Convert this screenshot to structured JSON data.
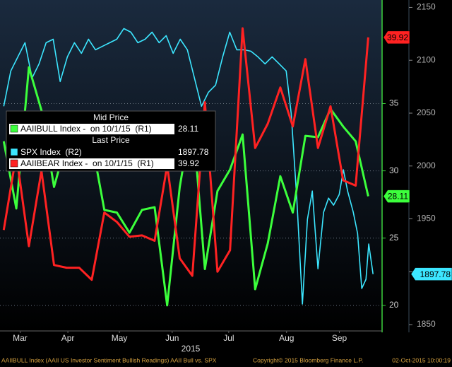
{
  "chart_data": {
    "type": "line",
    "x_label": "2015",
    "xlim": [
      -0.3,
      30.1
    ],
    "xticks": [
      {
        "value": 1.3,
        "label": "Mar"
      },
      {
        "value": 5.1,
        "label": "Apr"
      },
      {
        "value": 9.2,
        "label": "May"
      },
      {
        "value": 13.4,
        "label": "Jun"
      },
      {
        "value": 17.9,
        "label": "Jul"
      },
      {
        "value": 22.5,
        "label": "Aug"
      },
      {
        "value": 26.7,
        "label": "Sep"
      }
    ],
    "ylim": [
      18.1,
      42.7
    ],
    "yticks": [
      20,
      25,
      30,
      35
    ],
    "y2lim": [
      1844,
      2157
    ],
    "y2ticks": [
      1850,
      1900,
      1950,
      2000,
      2050,
      2100,
      2150
    ],
    "grid": true,
    "legend_groups": [
      "Mid Price",
      "Last Price"
    ],
    "series": [
      {
        "name": "AAIIBULL Index -  on 10/1/15  (R1)",
        "color": "#3cff3c",
        "axis": "y",
        "x": [
          0,
          1,
          2,
          3,
          4,
          5,
          6,
          7,
          8,
          9,
          10,
          11,
          12,
          13,
          14,
          15,
          16,
          17,
          18,
          19,
          20,
          21,
          22,
          23,
          24,
          25,
          26,
          27,
          28,
          29
        ],
        "values": [
          32.2,
          27.2,
          37.7,
          34.5,
          28.8,
          32.2,
          31.2,
          32.2,
          27.1,
          26.9,
          25.4,
          27.1,
          27.3,
          20.0,
          28.8,
          34.3,
          22.7,
          28.5,
          30.1,
          32.7,
          21.2,
          24.6,
          29.6,
          26.9,
          32.6,
          32.5,
          34.6,
          33.3,
          32.2,
          28.11
        ]
      },
      {
        "name": "SPX Index  (R2)",
        "color": "#3ce6ff",
        "axis": "y2",
        "x": [
          0,
          0.56,
          1.12,
          1.69,
          2.25,
          2.81,
          3.37,
          3.93,
          4.49,
          5.06,
          5.62,
          6.18,
          6.74,
          7.3,
          7.87,
          8.43,
          8.99,
          9.55,
          10.11,
          10.67,
          11.24,
          11.8,
          12.36,
          12.92,
          13.48,
          14.04,
          14.61,
          15.17,
          15.73,
          16.29,
          16.85,
          17.42,
          17.98,
          18.54,
          19.1,
          19.66,
          20.22,
          20.79,
          21.35,
          21.91,
          22.47,
          22.87,
          23.31,
          23.76,
          24.16,
          24.55,
          25.0,
          25.45,
          25.84,
          26.24,
          26.69,
          27.02,
          27.36,
          27.81,
          28.15,
          28.48,
          28.82,
          29.04,
          29.38
        ],
        "values": [
          2056.5,
          2089.9,
          2103.2,
          2116.6,
          2083.2,
          2096.6,
          2116.6,
          2119.9,
          2079.9,
          2103.2,
          2116.6,
          2106.6,
          2119.9,
          2109.9,
          2113.3,
          2116.6,
          2119.9,
          2130,
          2126.6,
          2116.6,
          2119.9,
          2126.6,
          2116.6,
          2123.3,
          2106.6,
          2119.9,
          2109.9,
          2083.2,
          2056.5,
          2069.8,
          2076.5,
          2103.2,
          2126.6,
          2109.9,
          2109.9,
          2108.6,
          2103.2,
          2096.6,
          2103.2,
          2096.6,
          2089.9,
          2049.8,
          1969.6,
          1869.4,
          1949.6,
          1976.3,
          1902.8,
          1956.3,
          1969.6,
          1963,
          1973,
          1996.4,
          1976.3,
          1956.3,
          1936.2,
          1884.1,
          1892.8,
          1926.2,
          1897.78
        ]
      },
      {
        "name": "AAIIBEAR Index -  on 10/1/15  (R1)",
        "color": "#ff2222",
        "axis": "y",
        "x": [
          0,
          1,
          2,
          3,
          4,
          5,
          6,
          7,
          8,
          9,
          10,
          11,
          12,
          13,
          14,
          15,
          16,
          17,
          18,
          19,
          20,
          21,
          22,
          23,
          24,
          25,
          26,
          27,
          28,
          29
        ],
        "values": [
          25.6,
          31.2,
          24.4,
          30.0,
          23.0,
          22.8,
          22.8,
          21.9,
          26.9,
          26.2,
          25.1,
          25.2,
          24.8,
          30.4,
          23.5,
          22.2,
          35.1,
          22.5,
          24.1,
          40.6,
          31.7,
          33.5,
          36.2,
          33.3,
          38.3,
          31.7,
          34.8,
          29.3,
          28.9,
          39.92
        ]
      }
    ],
    "footer": {
      "source": "AAIIBULL Index (AAII US Investor Sentiment Bullish Readings) AAII Bull vs. SPX",
      "copyright": "Copyright© 2015 Bloomberg Finance L.P.",
      "timestamp": "02-Oct-2015 10:00:19"
    }
  }
}
